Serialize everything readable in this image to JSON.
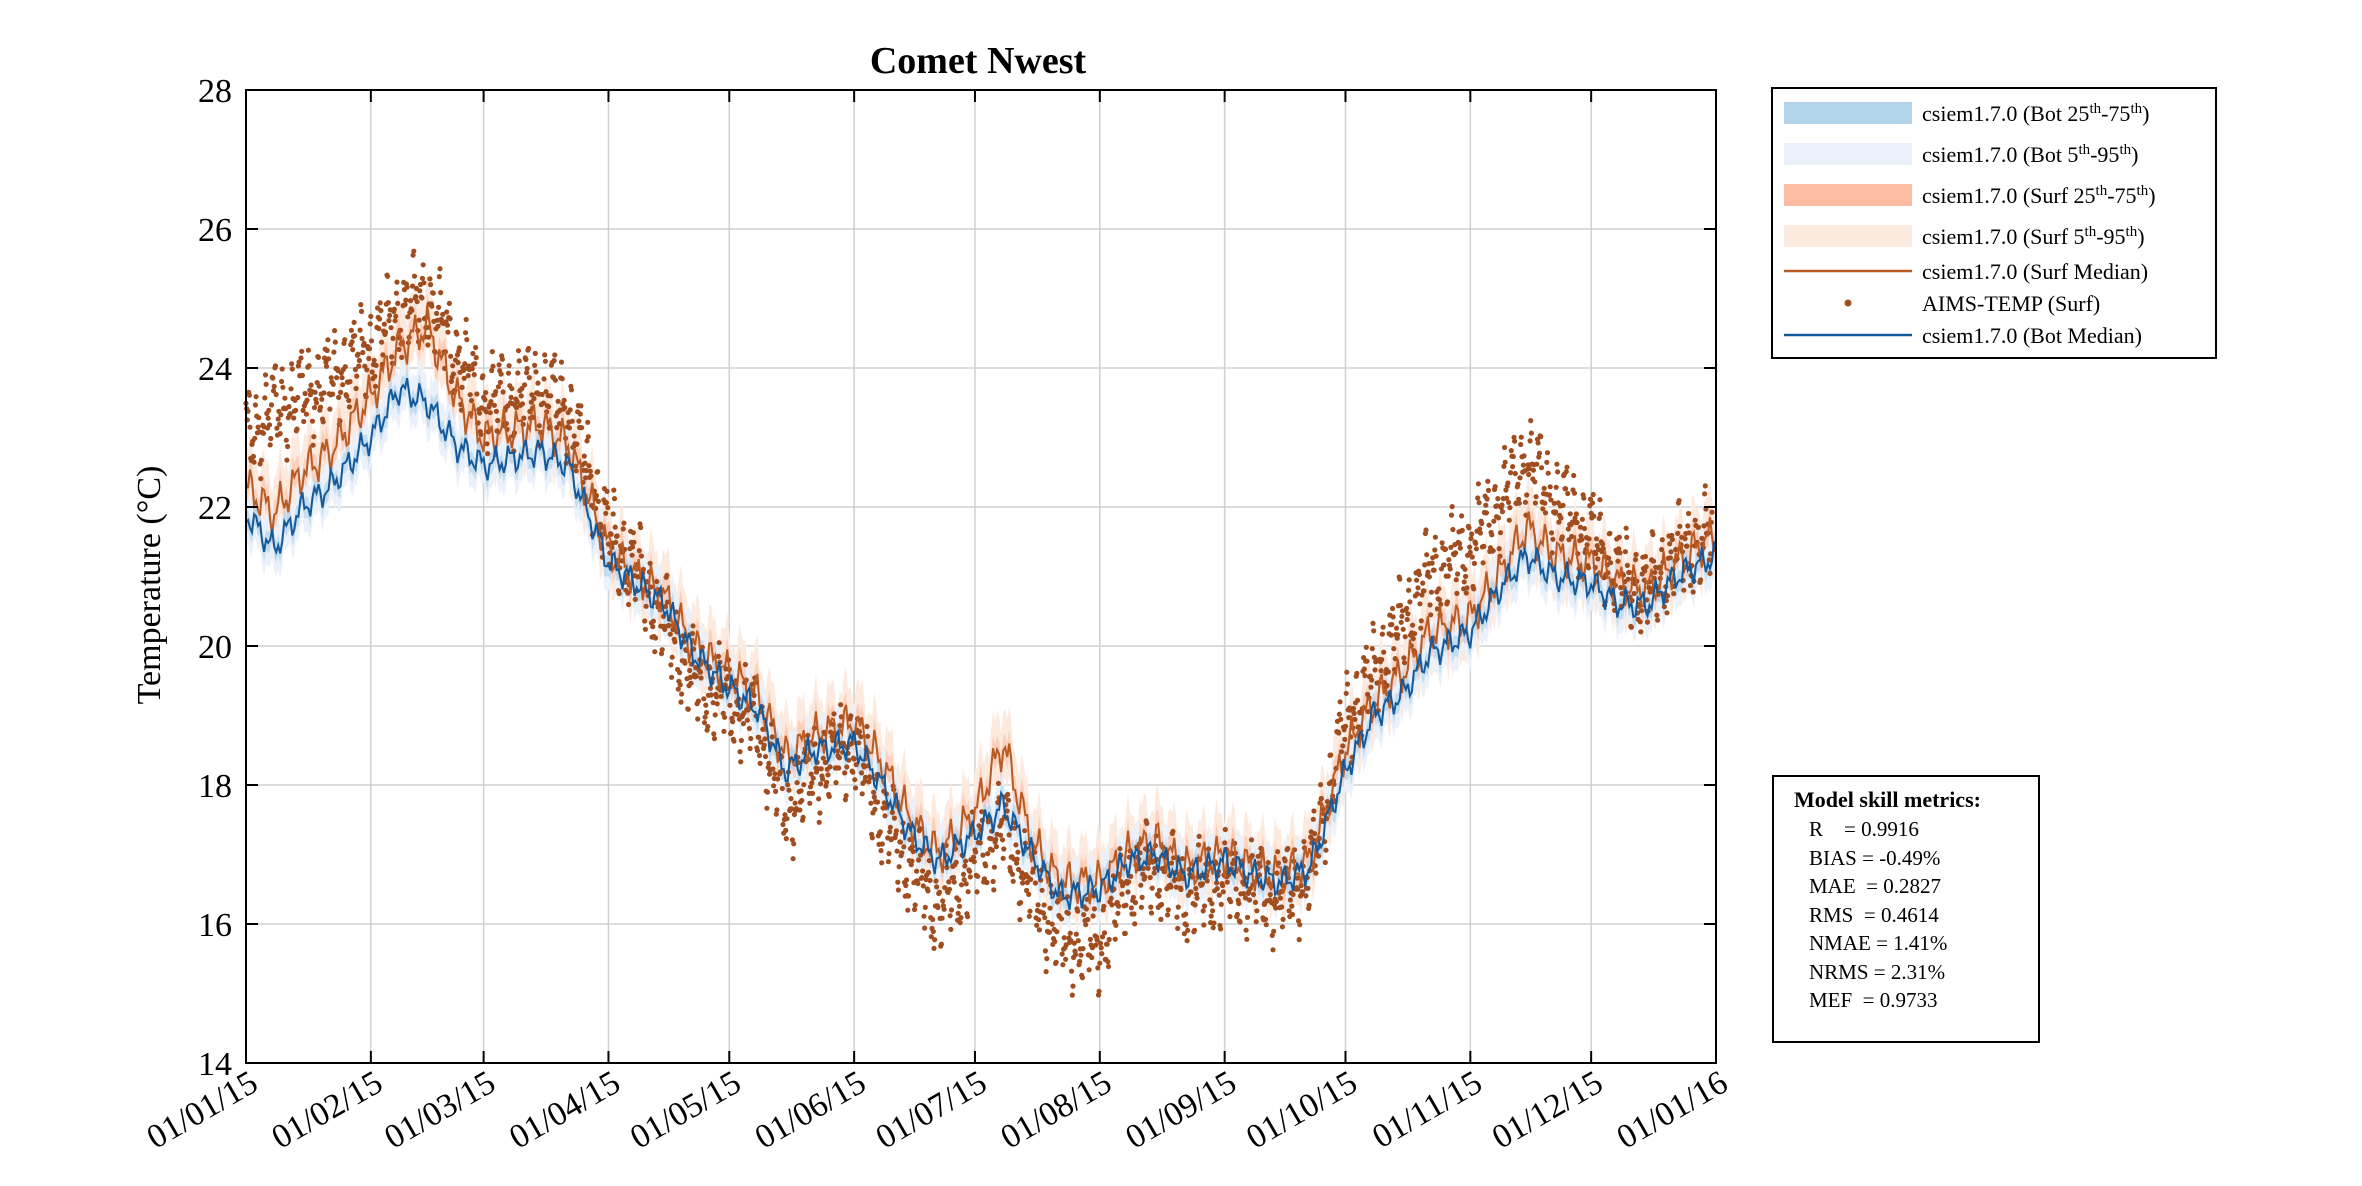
{
  "chart_data": {
    "type": "line",
    "title": "Comet Nwest",
    "xlabel": "",
    "ylabel": "Temperature (°C)",
    "ylim": [
      14,
      28
    ],
    "xlim": [
      "2015-01-01",
      "2016-01-01"
    ],
    "yticks": [
      14,
      16,
      18,
      20,
      22,
      24,
      26,
      28
    ],
    "xticks": [
      "2015-01-01",
      "2015-02-01",
      "2015-03-01",
      "2015-04-01",
      "2015-05-01",
      "2015-06-01",
      "2015-07-01",
      "2015-08-01",
      "2015-09-01",
      "2015-10-01",
      "2015-11-01",
      "2015-12-01",
      "2016-01-01"
    ],
    "xtick_labels": [
      "01/01/15",
      "01/02/15",
      "01/03/15",
      "01/04/15",
      "01/05/15",
      "01/06/15",
      "01/07/15",
      "01/08/15",
      "01/09/15",
      "01/10/15",
      "01/11/15",
      "01/12/15",
      "01/01/16"
    ],
    "grid": true,
    "legend_position": "outside-top-right",
    "legend": [
      {
        "label": "csiem1.7.0 (Bot 25th-75th)",
        "kind": "band",
        "color": "#b2d4ea"
      },
      {
        "label": "csiem1.7.0 (Bot 5th-95th)",
        "kind": "band",
        "color": "#eaf1fa"
      },
      {
        "label": "csiem1.7.0 (Surf 25th-75th)",
        "kind": "band",
        "color": "#fcbca4"
      },
      {
        "label": "csiem1.7.0 (Surf 5th-95th)",
        "kind": "band",
        "color": "#fdeadf"
      },
      {
        "label": "csiem1.7.0 (Surf Median)",
        "kind": "line",
        "color": "#b85a24"
      },
      {
        "label": "AIMS-TEMP (Surf)",
        "kind": "marker",
        "color": "#a04d1f"
      },
      {
        "label": "csiem1.7.0 (Bot Median)",
        "kind": "line",
        "color": "#15599a"
      }
    ],
    "series": [
      {
        "name": "csiem1.7.0 (Surf Median)",
        "x": [
          "2015-01-01",
          "2015-01-08",
          "2015-01-15",
          "2015-01-22",
          "2015-02-01",
          "2015-02-08",
          "2015-02-15",
          "2015-02-22",
          "2015-03-01",
          "2015-03-08",
          "2015-03-15",
          "2015-03-22",
          "2015-04-01",
          "2015-04-08",
          "2015-04-15",
          "2015-04-22",
          "2015-05-01",
          "2015-05-08",
          "2015-05-15",
          "2015-05-22",
          "2015-06-01",
          "2015-06-08",
          "2015-06-15",
          "2015-06-22",
          "2015-07-01",
          "2015-07-08",
          "2015-07-15",
          "2015-07-22",
          "2015-08-01",
          "2015-08-08",
          "2015-08-15",
          "2015-08-22",
          "2015-09-01",
          "2015-09-08",
          "2015-09-15",
          "2015-09-22",
          "2015-10-01",
          "2015-10-08",
          "2015-10-15",
          "2015-10-22",
          "2015-11-01",
          "2015-11-08",
          "2015-11-15",
          "2015-11-22",
          "2015-12-01",
          "2015-12-08",
          "2015-12-15",
          "2015-12-22",
          "2016-01-01"
        ],
        "y": [
          22.3,
          21.9,
          22.5,
          22.8,
          23.6,
          24.3,
          24.6,
          23.6,
          23.0,
          23.1,
          23.2,
          22.9,
          21.4,
          21.0,
          20.7,
          20.0,
          19.6,
          19.3,
          18.4,
          18.7,
          18.9,
          18.3,
          17.5,
          17.0,
          17.6,
          18.6,
          17.2,
          16.6,
          16.6,
          17.0,
          17.2,
          16.8,
          17.0,
          16.8,
          16.7,
          16.9,
          18.5,
          19.2,
          19.6,
          20.2,
          20.4,
          21.0,
          21.7,
          21.3,
          21.2,
          20.9,
          20.8,
          21.2,
          21.6
        ]
      },
      {
        "name": "csiem1.7.0 (Bot Median)",
        "x": [
          "2015-01-01",
          "2015-01-08",
          "2015-01-15",
          "2015-01-22",
          "2015-02-01",
          "2015-02-08",
          "2015-02-15",
          "2015-02-22",
          "2015-03-01",
          "2015-03-08",
          "2015-03-15",
          "2015-03-22",
          "2015-04-01",
          "2015-04-08",
          "2015-04-15",
          "2015-04-22",
          "2015-05-01",
          "2015-05-08",
          "2015-05-15",
          "2015-05-22",
          "2015-06-01",
          "2015-06-08",
          "2015-06-15",
          "2015-06-22",
          "2015-07-01",
          "2015-07-08",
          "2015-07-15",
          "2015-07-22",
          "2015-08-01",
          "2015-08-08",
          "2015-08-15",
          "2015-08-22",
          "2015-09-01",
          "2015-09-08",
          "2015-09-15",
          "2015-09-22",
          "2015-10-01",
          "2015-10-08",
          "2015-10-15",
          "2015-10-22",
          "2015-11-01",
          "2015-11-08",
          "2015-11-15",
          "2015-11-22",
          "2015-12-01",
          "2015-12-08",
          "2015-12-15",
          "2015-12-22",
          "2016-01-01"
        ],
        "y": [
          21.9,
          21.4,
          22.0,
          22.3,
          23.0,
          23.7,
          23.5,
          22.9,
          22.6,
          22.7,
          22.8,
          22.6,
          21.2,
          20.9,
          20.6,
          19.9,
          19.4,
          19.1,
          18.2,
          18.5,
          18.6,
          18.0,
          17.3,
          16.9,
          17.3,
          17.7,
          17.0,
          16.4,
          16.5,
          16.9,
          17.0,
          16.7,
          16.9,
          16.7,
          16.6,
          16.8,
          18.2,
          19.0,
          19.3,
          19.9,
          20.2,
          20.8,
          21.3,
          21.0,
          20.9,
          20.6,
          20.6,
          21.0,
          21.3
        ]
      },
      {
        "name": "AIMS-TEMP (Surf)",
        "x": [
          "2015-01-01",
          "2015-01-08",
          "2015-01-15",
          "2015-01-22",
          "2015-02-01",
          "2015-02-08",
          "2015-02-15",
          "2015-02-22",
          "2015-03-01",
          "2015-03-08",
          "2015-03-15",
          "2015-03-22",
          "2015-04-01",
          "2015-04-08",
          "2015-04-15",
          "2015-04-22",
          "2015-05-01",
          "2015-05-08",
          "2015-05-15",
          "2015-05-22",
          "2015-06-01",
          "2015-06-08",
          "2015-06-15",
          "2015-06-22",
          "2015-07-01",
          "2015-07-08",
          "2015-07-15",
          "2015-07-22",
          "2015-08-01",
          "2015-08-08",
          "2015-08-15",
          "2015-08-22",
          "2015-09-01",
          "2015-09-08",
          "2015-09-15",
          "2015-09-22",
          "2015-10-01",
          "2015-10-08",
          "2015-10-15",
          "2015-10-22",
          "2015-11-01",
          "2015-11-08",
          "2015-11-15",
          "2015-11-22",
          "2015-12-01",
          "2015-12-08",
          "2015-12-15",
          "2015-12-22",
          "2016-01-01"
        ],
        "y": [
          23.0,
          23.4,
          23.6,
          23.8,
          24.3,
          24.8,
          25.0,
          24.2,
          23.5,
          23.6,
          23.7,
          23.4,
          21.6,
          21.1,
          20.3,
          19.5,
          19.2,
          18.9,
          17.6,
          18.2,
          18.6,
          17.5,
          16.8,
          16.2,
          16.9,
          17.4,
          16.5,
          15.8,
          15.7,
          16.6,
          16.8,
          16.4,
          16.6,
          16.5,
          16.4,
          16.7,
          18.9,
          19.6,
          20.3,
          21.0,
          21.4,
          22.0,
          22.7,
          22.1,
          21.6,
          21.0,
          20.8,
          21.3,
          21.6
        ]
      }
    ]
  },
  "metrics": {
    "title": "Model skill metrics:",
    "rows": [
      "R    = 0.9916",
      "BIAS = -0.49%",
      "MAE  = 0.2827",
      "RMS  = 0.4614",
      "NMAE = 1.41%",
      "NRMS = 2.31%",
      "MEF  = 0.9733"
    ]
  }
}
